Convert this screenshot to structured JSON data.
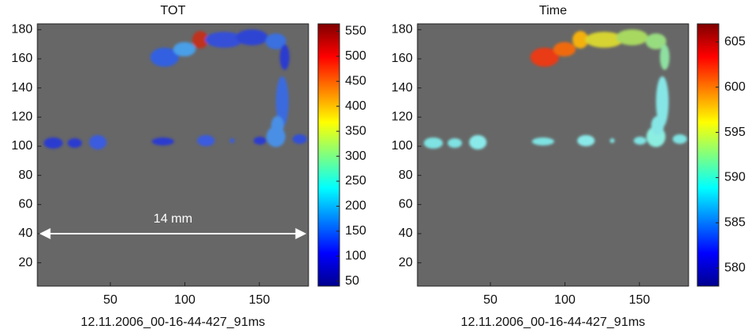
{
  "chart_data": [
    {
      "type": "heatmap",
      "title": "TOT",
      "xlabel": "12.11.2006_00-16-44-427_91ms",
      "xlim": [
        1,
        183
      ],
      "xticks": [
        50,
        100,
        150
      ],
      "ylim": [
        4,
        184
      ],
      "yticks": [
        20,
        40,
        60,
        80,
        100,
        120,
        140,
        160,
        180
      ],
      "clim": [
        40,
        565
      ],
      "cticks": [
        50,
        100,
        150,
        200,
        250,
        300,
        350,
        400,
        450,
        500,
        550
      ],
      "colormap": "jet",
      "background": "#676767",
      "annotation": "14 mm"
    },
    {
      "type": "heatmap",
      "title": "Time",
      "xlabel": "12.11.2006_00-16-44-427_91ms",
      "xlim": [
        1,
        183
      ],
      "xticks": [
        50,
        100,
        150
      ],
      "ylim": [
        4,
        184
      ],
      "yticks": [
        20,
        40,
        60,
        80,
        100,
        120,
        140,
        160,
        180
      ],
      "clim": [
        578,
        607
      ],
      "cticks": [
        580,
        585,
        590,
        595,
        600,
        605
      ],
      "colormap": "jet",
      "background": "#676767"
    }
  ]
}
